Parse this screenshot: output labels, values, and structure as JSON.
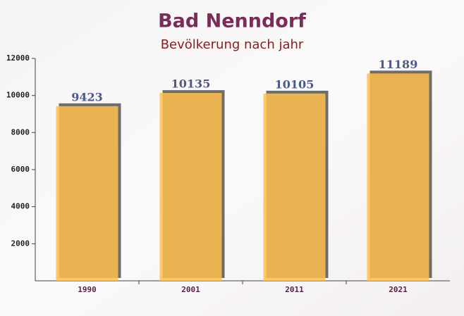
{
  "chart_data": {
    "type": "bar",
    "title": "Bad Nenndorf",
    "subtitle": "Bevölkerung nach jahr",
    "categories": [
      "1990",
      "2001",
      "2011",
      "2021"
    ],
    "values": [
      9423,
      10135,
      10105,
      11189
    ],
    "color": "#ffc04c",
    "ylim": [
      0,
      12000
    ],
    "yticks": [
      2000,
      4000,
      6000,
      8000,
      10000,
      12000
    ]
  }
}
